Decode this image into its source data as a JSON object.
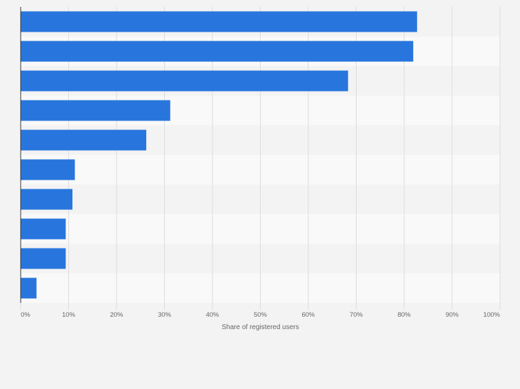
{
  "chart_data": {
    "type": "bar",
    "orientation": "horizontal",
    "categories": [
      "",
      "",
      "",
      "",
      "",
      "",
      "",
      "",
      "",
      ""
    ],
    "values": [
      82.7,
      81.9,
      68.3,
      31.2,
      26.2,
      11.3,
      10.8,
      9.4,
      9.4,
      3.3
    ],
    "xlabel": "Share of registered users",
    "ylabel": "",
    "xlim": [
      0,
      100
    ],
    "tick_labels": [
      "0%",
      "10%",
      "20%",
      "30%",
      "40%",
      "50%",
      "60%",
      "70%",
      "80%",
      "90%",
      "100%"
    ],
    "grid": true,
    "legend": "none",
    "colors": {
      "bar": "#2876dd",
      "band_light": "#f9f9f9",
      "band_dark": "#f3f3f3",
      "gridline": "#dcdcdc",
      "axis": "#333333",
      "tick_text": "#666666"
    }
  }
}
